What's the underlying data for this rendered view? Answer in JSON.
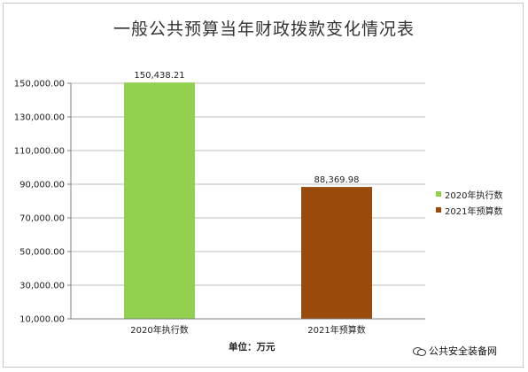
{
  "chart_data": {
    "type": "bar",
    "title": "一般公共预算当年财政拨款变化情况表",
    "categories": [
      "2020年执行数",
      "2021年预算数"
    ],
    "series": [
      {
        "name": "2020年执行数",
        "values": [
          150438.21,
          null
        ],
        "color": "#92d050"
      },
      {
        "name": "2021年预算数",
        "values": [
          null,
          88369.98
        ],
        "color": "#9a4a0a"
      }
    ],
    "data_labels": [
      "150,438.21",
      "88,369.98"
    ],
    "ylim": [
      10000,
      150000
    ],
    "yticks": [
      "10,000.00",
      "30,000.00",
      "50,000.00",
      "70,000.00",
      "90,000.00",
      "110,000.00",
      "130,000.00",
      "150,000.00"
    ],
    "ytick_values": [
      10000,
      30000,
      50000,
      70000,
      90000,
      110000,
      130000,
      150000
    ],
    "xlabel": "单位：万元",
    "ylabel": "",
    "grid": true,
    "legend_placement": "right"
  },
  "watermark": "公共安全装备网"
}
